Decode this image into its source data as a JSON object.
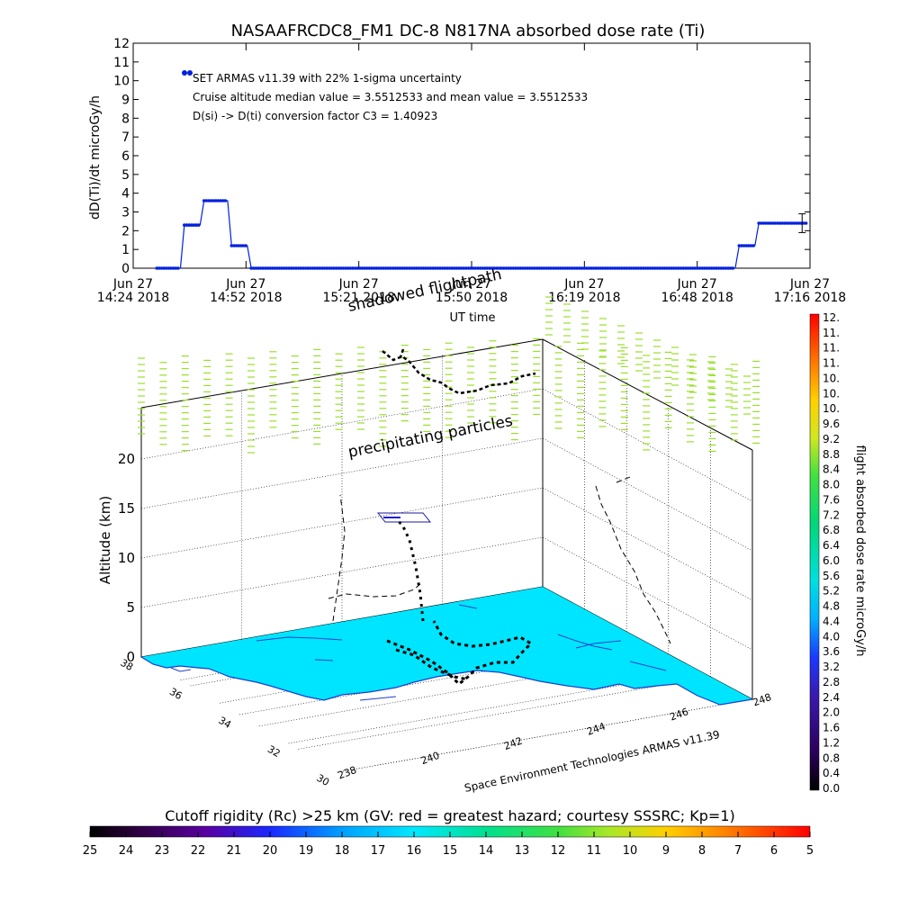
{
  "chart_data": [
    {
      "type": "line",
      "title": "NASAAFRCDC8_FM1 DC-8   N817NA absorbed dose rate (Ti)",
      "ylabel": "dD(Ti)/dt microGy/h",
      "xlabel": "UT time",
      "ylim": [
        0,
        12
      ],
      "yticks": [
        "0",
        "1",
        "2",
        "3",
        "4",
        "5",
        "6",
        "7",
        "8",
        "9",
        "10",
        "11",
        "12"
      ],
      "xticks": [
        {
          "date": "Jun 27",
          "time": "14:24 2018"
        },
        {
          "date": "Jun 27",
          "time": "14:52 2018"
        },
        {
          "date": "Jun 27",
          "time": "15:21 2018"
        },
        {
          "date": "Jun 27",
          "time": "15:50 2018"
        },
        {
          "date": "Jun 27",
          "time": "16:19 2018"
        },
        {
          "date": "Jun 27",
          "time": "16:48 2018"
        },
        {
          "date": "Jun 27",
          "time": "17:16 2018"
        }
      ],
      "annotations": [
        "SET ARMAS v11.39 with 22% 1-sigma uncertainty",
        "Cruise altitude median value = 3.5512533 and mean value = 3.5512533",
        "D(si) -> D(ti) conversion factor C3 = 1.40923"
      ],
      "series": [
        {
          "color": "#0020e0",
          "steps": [
            {
              "from": "14:30",
              "to": "14:36",
              "value": 0
            },
            {
              "from": "14:37",
              "to": "14:41",
              "value": 2.3
            },
            {
              "from": "14:42",
              "to": "14:48",
              "value": 3.6
            },
            {
              "from": "14:49",
              "to": "14:53",
              "value": 1.2
            },
            {
              "from": "14:54",
              "to": "16:57",
              "value": 0
            },
            {
              "from": "16:58",
              "to": "17:02",
              "value": 1.2
            },
            {
              "from": "17:03",
              "to": "17:15",
              "value": 2.4
            }
          ]
        }
      ],
      "error_bar": {
        "time": "17:14",
        "low": 1.9,
        "high": 2.9
      }
    },
    {
      "type": "scatter",
      "subtype": "3d-flight-track",
      "zlabel": "Altitude (km)",
      "zticks": [
        "0",
        "5",
        "10",
        "15",
        "20"
      ],
      "lat_ticks": [
        "30",
        "32",
        "34",
        "36",
        "38"
      ],
      "lon_ticks": [
        "238",
        "240",
        "242",
        "244",
        "246",
        "248"
      ],
      "annotations": [
        "shadowed flightpath",
        "precipitating particles"
      ],
      "credit": "Space Environment Technologies ARMAS v11.39",
      "colors": {
        "map_fill": "#00e5ff",
        "map_coast": "#1a3fd0",
        "particles": "#9adf2a",
        "track": "#000000"
      }
    },
    {
      "type": "heatmap",
      "role": "vertical-colorbar",
      "label": "flight absorbed dose rate microGy/h",
      "ticks": [
        "0.0",
        "0.4",
        "0.8",
        "1.2",
        "1.6",
        "2.0",
        "2.4",
        "2.8",
        "3.2",
        "3.6",
        "4.0",
        "4.4",
        "4.8",
        "5.2",
        "5.6",
        "6.0",
        "6.4",
        "6.8",
        "7.2",
        "7.6",
        "8.0",
        "8.4",
        "8.8",
        "9.2",
        "9.6",
        "10.",
        "10.",
        "10.",
        "11.",
        "11.",
        "11.",
        "12."
      ],
      "range": [
        0,
        12
      ]
    },
    {
      "type": "heatmap",
      "role": "horizontal-colorbar",
      "title": "Cutoff rigidity (Rc) >25 km (GV: red = greatest hazard; courtesy SSSRC; Kp=1)",
      "ticks": [
        "25",
        "24",
        "23",
        "22",
        "21",
        "20",
        "19",
        "18",
        "17",
        "16",
        "15",
        "14",
        "13",
        "12",
        "11",
        "10",
        "9",
        "8",
        "7",
        "6",
        "5"
      ],
      "range": [
        25,
        5
      ]
    }
  ]
}
